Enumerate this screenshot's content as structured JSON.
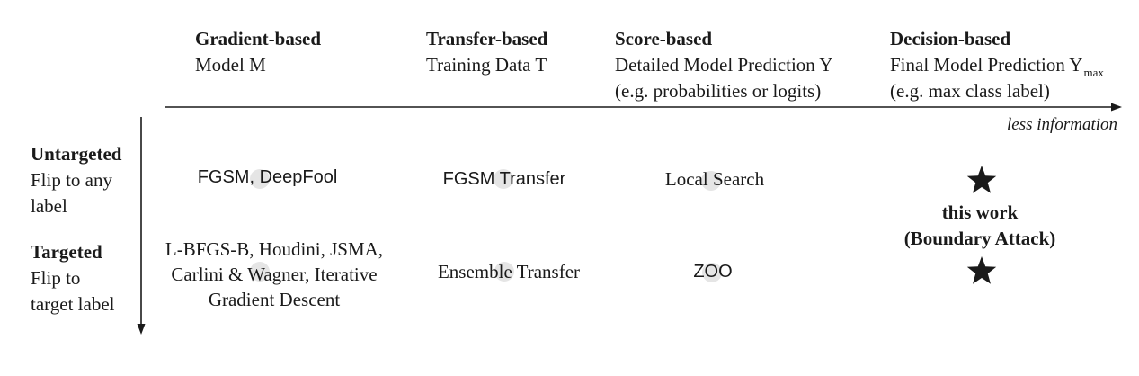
{
  "colors": {
    "ink": "#1a1a1a",
    "dot": "#dcdcdc",
    "background": "#ffffff"
  },
  "columns": [
    {
      "title": "Gradient-based",
      "desc": "Model M"
    },
    {
      "title": "Transfer-based",
      "desc": "Training Data T"
    },
    {
      "title": "Score-based",
      "desc_line1": "Detailed Model Prediction Y",
      "desc_line2": "(e.g. probabilities or logits)"
    },
    {
      "title": "Decision-based",
      "desc_line1": "Final Model Prediction Y",
      "desc_line1_sub": "max",
      "desc_line2": "(e.g. max class label)"
    }
  ],
  "axis_label": "less information",
  "rows": [
    {
      "title": "Untargeted",
      "desc": "Flip to any\nlabel"
    },
    {
      "title": "Targeted",
      "desc": "Flip to\ntarget label"
    }
  ],
  "cells": {
    "untargeted": {
      "gradient": "FGSM, DeepFool",
      "transfer": "FGSM Transfer",
      "score": "Local Search"
    },
    "targeted": {
      "gradient": "L-BFGS-B, Houdini, JSMA,\nCarlini & Wagner, Iterative\nGradient Descent",
      "transfer": "Ensemble Transfer",
      "score": "ZOO"
    }
  },
  "decision": {
    "line1": "this work",
    "line2": "(Boundary Attack)",
    "icon": "star-icon"
  }
}
